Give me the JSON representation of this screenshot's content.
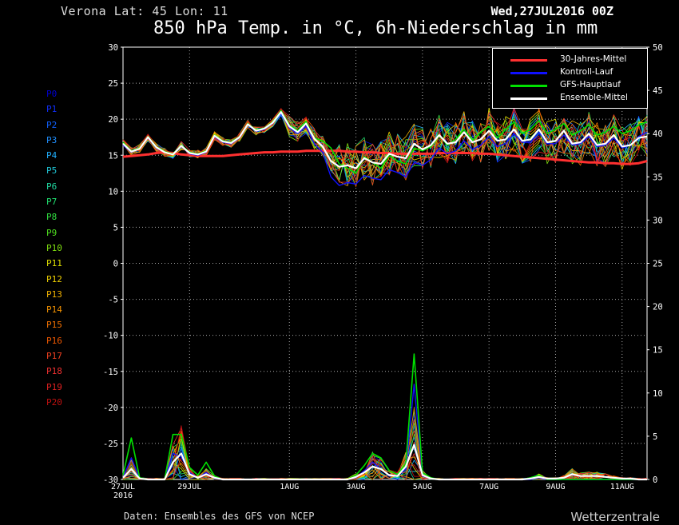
{
  "header": {
    "place": "Verona  Lat: 45 Lon: 11",
    "date": "Wed,27JUL2016 00Z",
    "title": "850 hPa Temp. in °C, 6h-Niederschlag in mm",
    "source": "Daten: Ensembles des GFS von NCEP",
    "brand": "Wetterzentrale"
  },
  "legend": [
    {
      "label": "30-Jahres-Mittel",
      "color": "#ff3030"
    },
    {
      "label": "Kontroll-Lauf",
      "color": "#1010ff"
    },
    {
      "label": "GFS-Hauptlauf",
      "color": "#00e000"
    },
    {
      "label": "Ensemble-Mittel",
      "color": "#ffffff"
    }
  ],
  "members": [
    {
      "label": "P0",
      "color": "#0000d0"
    },
    {
      "label": "P1",
      "color": "#1030ff"
    },
    {
      "label": "P2",
      "color": "#1060ff"
    },
    {
      "label": "P3",
      "color": "#2090ff"
    },
    {
      "label": "P4",
      "color": "#20b0ff"
    },
    {
      "label": "P5",
      "color": "#20c8d8"
    },
    {
      "label": "P6",
      "color": "#20d8a0"
    },
    {
      "label": "P7",
      "color": "#20e070"
    },
    {
      "label": "P8",
      "color": "#30e040"
    },
    {
      "label": "P9",
      "color": "#50e020"
    },
    {
      "label": "P10",
      "color": "#80e010"
    },
    {
      "label": "P11",
      "color": "#e0e000"
    },
    {
      "label": "P12",
      "color": "#f0d000"
    },
    {
      "label": "P13",
      "color": "#f0b000"
    },
    {
      "label": "P14",
      "color": "#f09000"
    },
    {
      "label": "P15",
      "color": "#f07000"
    },
    {
      "label": "P16",
      "color": "#f05800"
    },
    {
      "label": "P17",
      "color": "#f04020"
    },
    {
      "label": "P18",
      "color": "#f03030"
    },
    {
      "label": "P19",
      "color": "#e02020"
    },
    {
      "label": "P20",
      "color": "#c01010"
    }
  ],
  "chart_data": {
    "type": "line",
    "x_ticks": [
      {
        "label": "27JUL",
        "day": 0
      },
      {
        "label": "29JUL",
        "day": 2
      },
      {
        "label": "1AUG",
        "day": 5
      },
      {
        "label": "3AUG",
        "day": 7
      },
      {
        "label": "5AUG",
        "day": 9
      },
      {
        "label": "7AUG",
        "day": 11
      },
      {
        "label": "9AUG",
        "day": 13
      },
      {
        "label": "11AUG",
        "day": 15
      }
    ],
    "x_sublabel": "2016",
    "xlim_days": [
      0,
      15.75
    ],
    "ylim_left": [
      -30,
      30
    ],
    "y_ticks_left": [
      30,
      25,
      20,
      15,
      10,
      5,
      0,
      -5,
      -10,
      -15,
      -20,
      -25,
      -30
    ],
    "ylim_right": [
      0,
      50
    ],
    "y_ticks_right": [
      50,
      45,
      40,
      35,
      30,
      25,
      20,
      15,
      10,
      5,
      0
    ],
    "grid": true,
    "legend_position": "top-right",
    "temperature": {
      "climate_mean": [
        14.8,
        14.9,
        15.0,
        15.1,
        15.3,
        15.4,
        15.3,
        15.1,
        15.0,
        14.9,
        14.9,
        14.9,
        14.9,
        15.0,
        15.1,
        15.2,
        15.3,
        15.4,
        15.4,
        15.5,
        15.5,
        15.5,
        15.6,
        15.6,
        15.6,
        15.6,
        15.6,
        15.5,
        15.5,
        15.4,
        15.4,
        15.3,
        15.3,
        15.2,
        15.2,
        15.2,
        15.2,
        15.2,
        15.3,
        15.3,
        15.3,
        15.3,
        15.3,
        15.2,
        15.2,
        15.1,
        15.0,
        14.9,
        14.8,
        14.7,
        14.6,
        14.5,
        14.4,
        14.3,
        14.2,
        14.1,
        14.0,
        14.0,
        13.9,
        13.9,
        13.8,
        13.8,
        13.9,
        14.2
      ],
      "gfs_main": [
        16.8,
        15.6,
        16.0,
        17.6,
        16.2,
        15.5,
        15.2,
        16.4,
        15.4,
        15.2,
        15.6,
        17.8,
        17.0,
        16.8,
        17.6,
        19.4,
        18.5,
        18.8,
        19.6,
        21.2,
        19.2,
        18.4,
        19.7,
        17.4,
        17.0,
        16.0,
        13.8,
        13.2,
        12.5,
        14.8,
        14.0,
        13.2,
        15.0,
        14.2,
        13.8,
        16.0,
        15.6,
        16.2,
        17.8,
        16.4,
        17.2,
        18.6,
        17.0,
        18.2,
        19.0,
        17.4,
        18.6,
        19.6,
        18.0,
        18.6,
        19.8,
        18.0,
        18.6,
        19.4,
        17.8,
        18.4,
        19.2,
        17.8,
        18.2,
        19.0,
        18.0,
        18.4,
        19.2,
        19.6
      ],
      "control": [
        16.4,
        15.4,
        15.9,
        17.4,
        16.0,
        15.4,
        15.1,
        16.2,
        15.2,
        15.0,
        15.4,
        17.6,
        16.8,
        16.6,
        17.4,
        19.2,
        18.3,
        18.6,
        19.4,
        20.8,
        18.8,
        18.0,
        19.0,
        16.6,
        15.4,
        12.0,
        10.8,
        11.2,
        11.0,
        12.2,
        11.8,
        11.6,
        13.0,
        12.6,
        12.0,
        14.0,
        13.6,
        14.4,
        16.0,
        15.2,
        15.6,
        17.0,
        15.8,
        16.4,
        17.6,
        16.2,
        16.6,
        18.0,
        16.8,
        16.8,
        18.2,
        16.6,
        16.6,
        17.8,
        16.4,
        16.6,
        17.6,
        16.2,
        16.4,
        17.4,
        16.0,
        16.4,
        17.6,
        18.2
      ],
      "ensemble_mean": [
        16.6,
        15.5,
        15.9,
        17.5,
        16.1,
        15.4,
        15.1,
        16.3,
        15.3,
        15.1,
        15.5,
        17.7,
        16.9,
        16.7,
        17.5,
        19.3,
        18.4,
        18.7,
        19.5,
        21.0,
        19.0,
        18.2,
        19.4,
        17.3,
        16.2,
        14.2,
        13.4,
        13.6,
        13.2,
        14.6,
        14.0,
        13.8,
        15.2,
        14.8,
        14.6,
        16.6,
        15.8,
        16.4,
        17.8,
        16.6,
        16.8,
        18.2,
        16.8,
        17.2,
        18.4,
        17.0,
        17.2,
        18.6,
        17.0,
        17.2,
        18.6,
        16.8,
        17.0,
        18.4,
        16.6,
        16.8,
        18.0,
        16.4,
        16.6,
        17.8,
        16.2,
        16.4,
        17.4,
        17.6
      ]
    },
    "precipitation": {
      "gfs_main": [
        0.5,
        4.8,
        0.2,
        0,
        0,
        0,
        5.2,
        5.2,
        1.4,
        0.5,
        2.0,
        0.4,
        0,
        0,
        0,
        0,
        0,
        0,
        0,
        0,
        0,
        0,
        0,
        0,
        0,
        0,
        0,
        0,
        0.5,
        1.6,
        3.0,
        2.5,
        1.0,
        0.6,
        1.8,
        14.5,
        0.8,
        0.2,
        0,
        0,
        0,
        0,
        0,
        0,
        0,
        0,
        0,
        0,
        0,
        0.2,
        0.5,
        0,
        0,
        0,
        0,
        0,
        0,
        0,
        0,
        0,
        0,
        0,
        0,
        0
      ],
      "control": [
        0.2,
        2.5,
        0.1,
        0,
        0,
        0,
        3.0,
        2.6,
        0.8,
        0.2,
        0.8,
        0.1,
        0,
        0,
        0,
        0,
        0,
        0,
        0,
        0,
        0,
        0,
        0,
        0,
        0,
        0,
        0,
        0,
        0.2,
        1.0,
        2.0,
        1.2,
        0.4,
        0.5,
        1.2,
        11.0,
        0.4,
        0.1,
        0,
        0,
        0,
        0,
        0,
        0,
        0,
        0,
        0,
        0,
        0,
        0,
        0.2,
        0,
        0,
        0,
        0,
        0,
        0,
        0,
        0,
        0,
        0,
        0,
        0,
        0
      ],
      "ensemble_mean": [
        0.2,
        1.2,
        0.1,
        0,
        0,
        0,
        2.0,
        3.0,
        0.6,
        0.2,
        0.6,
        0.2,
        0,
        0,
        0,
        0,
        0,
        0,
        0,
        0,
        0,
        0,
        0,
        0,
        0,
        0,
        0,
        0,
        0.3,
        0.8,
        1.5,
        1.2,
        0.5,
        0.4,
        1.5,
        4.0,
        0.5,
        0.1,
        0,
        0,
        0,
        0,
        0,
        0,
        0,
        0,
        0,
        0,
        0,
        0.1,
        0.3,
        0.1,
        0.1,
        0.2,
        0.6,
        0.4,
        0.4,
        0.4,
        0.3,
        0.2,
        0.1,
        0.1,
        0,
        0
      ]
    }
  }
}
